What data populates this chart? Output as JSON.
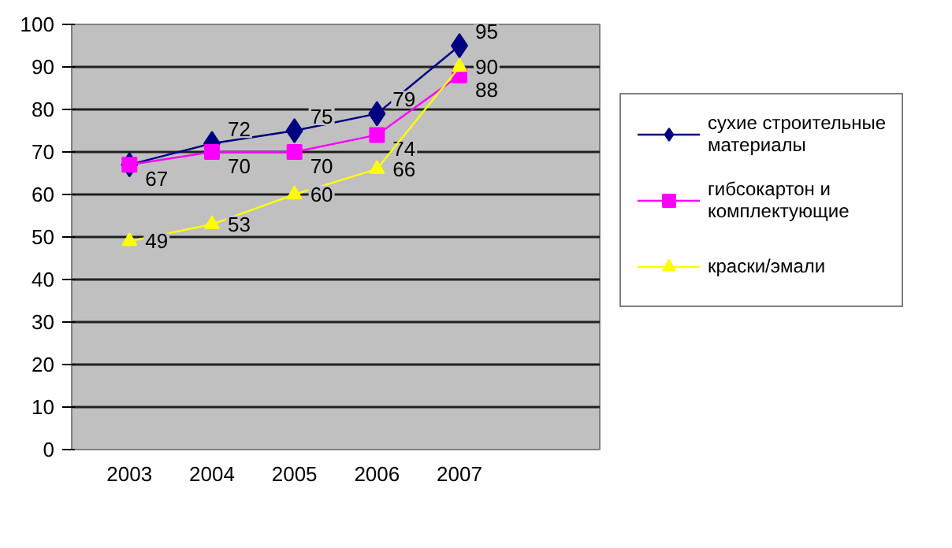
{
  "chart_data": {
    "type": "line",
    "categories": [
      "2003",
      "2004",
      "2005",
      "2006",
      "2007",
      null
    ],
    "ylim": [
      0,
      100
    ],
    "yticks": [
      0,
      10,
      20,
      30,
      40,
      50,
      60,
      70,
      80,
      90,
      100
    ],
    "grid": "y",
    "legend": "right",
    "series": [
      {
        "name": "сухие строительные материалы",
        "color": "#000080",
        "marker": "diamond",
        "values": [
          67,
          72,
          75,
          79,
          95,
          null
        ],
        "value_labels": [
          null,
          "72",
          "75",
          "79",
          "95",
          null
        ]
      },
      {
        "name": "гибсокартон и комплектующие",
        "color": "#ff00ff",
        "marker": "square",
        "values": [
          67,
          70,
          70,
          74,
          88,
          null
        ],
        "value_labels": [
          "67",
          "70",
          "70",
          "74",
          "88",
          null
        ]
      },
      {
        "name": "краски/эмали",
        "color": "#ffff00",
        "marker": "triangle",
        "values": [
          49,
          53,
          60,
          66,
          90,
          null
        ],
        "value_labels": [
          "49",
          "53",
          "60",
          "66",
          "90",
          null
        ]
      }
    ]
  }
}
